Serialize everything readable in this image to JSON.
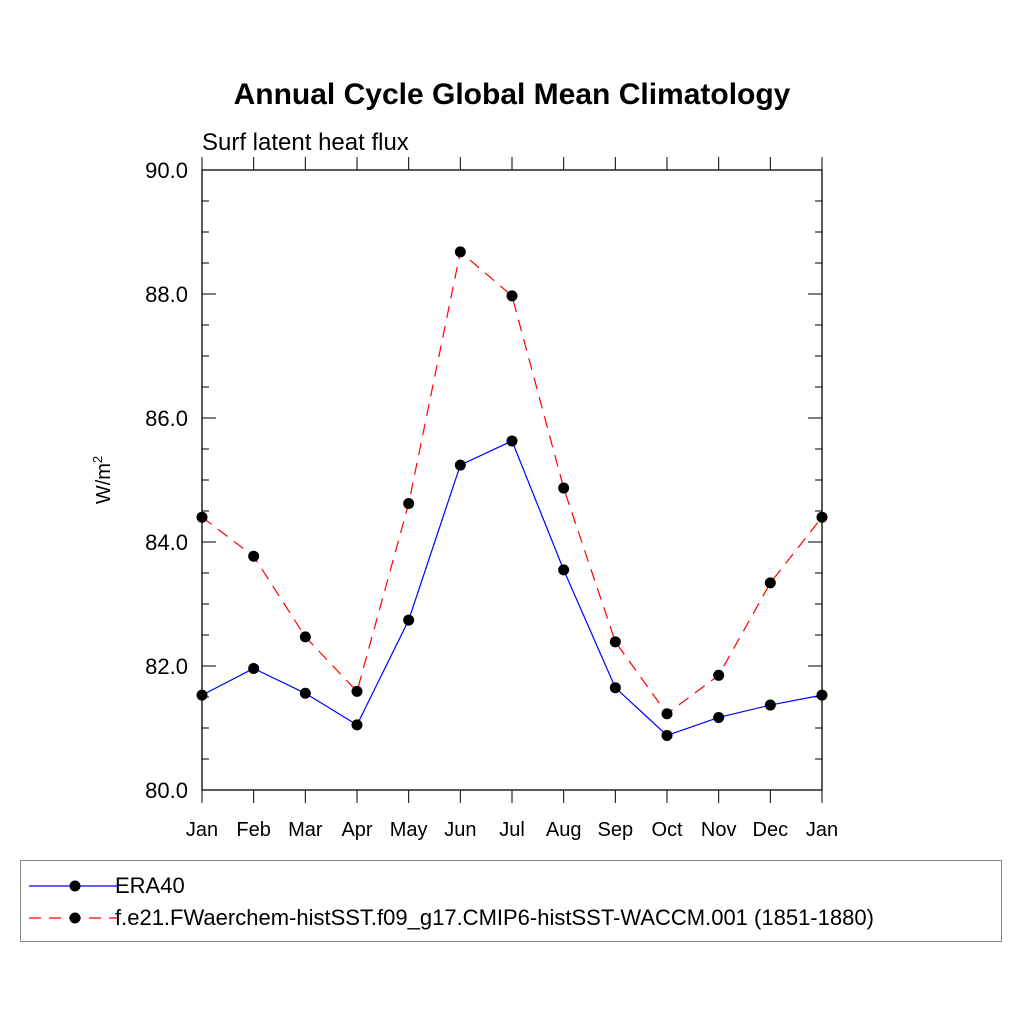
{
  "chart_data": {
    "type": "line",
    "title": "Annual Cycle Global Mean Climatology",
    "subtitle": "Surf latent heat flux",
    "ylabel": "W/m",
    "ylabel_superscript": "2",
    "xlabel": "",
    "categories": [
      "Jan",
      "Feb",
      "Mar",
      "Apr",
      "May",
      "Jun",
      "Jul",
      "Aug",
      "Sep",
      "Oct",
      "Nov",
      "Dec",
      "Jan"
    ],
    "ylim": [
      80.0,
      90.0
    ],
    "yticks": [
      "80.0",
      "82.0",
      "84.0",
      "86.0",
      "88.0",
      "90.0"
    ],
    "grid": false,
    "legend_position": "bottom",
    "series": [
      {
        "name": "ERA40",
        "color": "#0000ff",
        "dash": "solid",
        "values": [
          81.53,
          81.96,
          81.56,
          81.05,
          82.74,
          85.24,
          85.63,
          83.55,
          81.65,
          80.88,
          81.17,
          81.37,
          81.53
        ]
      },
      {
        "name": "f.e21.FWaerchem-histSST.f09_g17.CMIP6-histSST-WACCM.001 (1851-1880)",
        "color": "#ff0000",
        "dash": "dashed",
        "values": [
          84.4,
          83.77,
          82.47,
          81.59,
          84.62,
          88.68,
          87.97,
          84.87,
          82.39,
          81.23,
          81.85,
          83.34,
          84.4
        ]
      }
    ]
  }
}
